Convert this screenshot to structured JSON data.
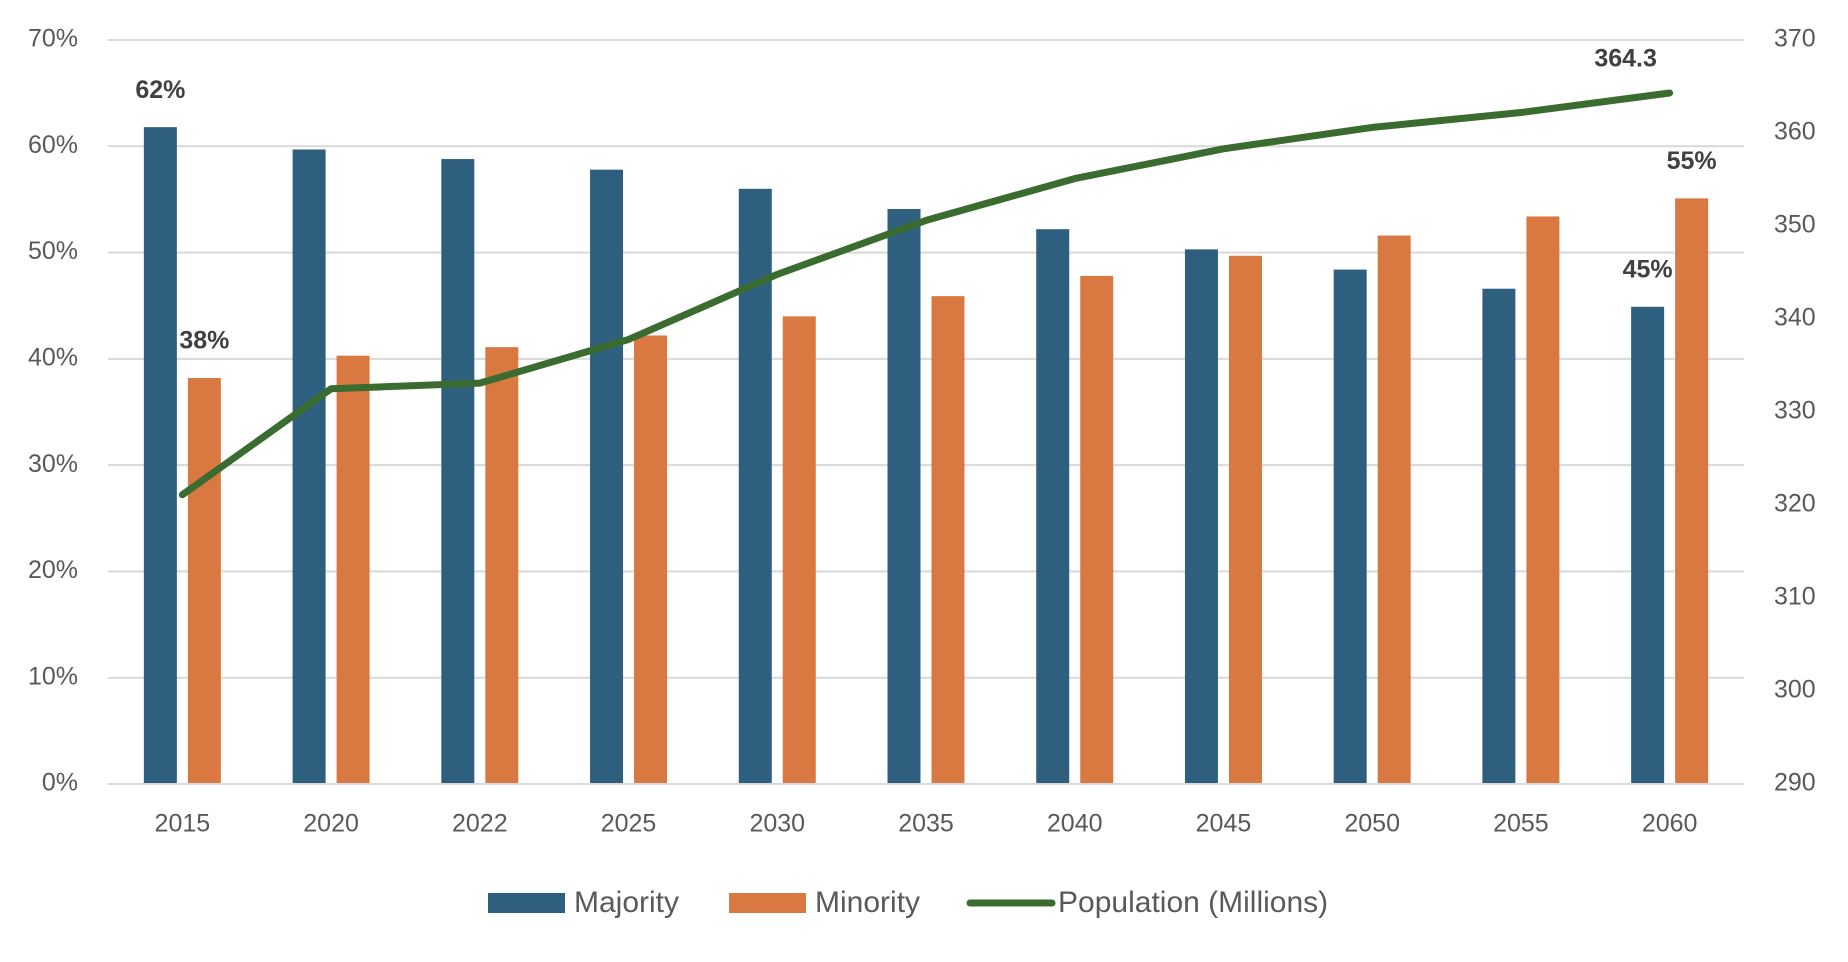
{
  "chart_data": {
    "type": "bar",
    "categories": [
      "2015",
      "2020",
      "2022",
      "2025",
      "2030",
      "2035",
      "2040",
      "2045",
      "2050",
      "2055",
      "2060"
    ],
    "series": [
      {
        "name": "Majority",
        "color": "#2e5f7f",
        "values": [
          61.8,
          59.7,
          58.8,
          57.8,
          56.0,
          54.1,
          52.2,
          50.3,
          48.4,
          46.6,
          44.9
        ],
        "value_labels": [
          "62%",
          null,
          null,
          null,
          null,
          null,
          null,
          null,
          null,
          null,
          "45%"
        ]
      },
      {
        "name": "Minority",
        "color": "#d97941",
        "values": [
          38.2,
          40.3,
          41.1,
          42.2,
          44.0,
          45.9,
          47.8,
          49.7,
          51.6,
          53.4,
          55.1
        ],
        "value_labels": [
          "38%",
          null,
          null,
          null,
          null,
          null,
          null,
          null,
          null,
          null,
          "55%"
        ]
      },
      {
        "name": "Population (Millions)",
        "color": "#3a6b2f",
        "type": "line",
        "axis": "y2",
        "values": [
          321.1,
          332.5,
          333.1,
          337.8,
          344.8,
          350.6,
          355.1,
          358.3,
          360.6,
          362.2,
          364.3
        ],
        "value_labels": [
          null,
          null,
          null,
          null,
          null,
          null,
          null,
          null,
          null,
          null,
          "364.3"
        ]
      }
    ],
    "ylim": [
      0,
      70
    ],
    "yticks": [
      {
        "value": 0,
        "label": "0%"
      },
      {
        "value": 10,
        "label": "10%"
      },
      {
        "value": 20,
        "label": "20%"
      },
      {
        "value": 30,
        "label": "30%"
      },
      {
        "value": 40,
        "label": "40%"
      },
      {
        "value": 50,
        "label": "50%"
      },
      {
        "value": 60,
        "label": "60%"
      },
      {
        "value": 70,
        "label": "70%"
      }
    ],
    "y2lim": [
      290,
      370
    ],
    "y2ticks": [
      290,
      300,
      310,
      320,
      330,
      340,
      350,
      360,
      370
    ],
    "grid": true,
    "legend": "bottom"
  }
}
